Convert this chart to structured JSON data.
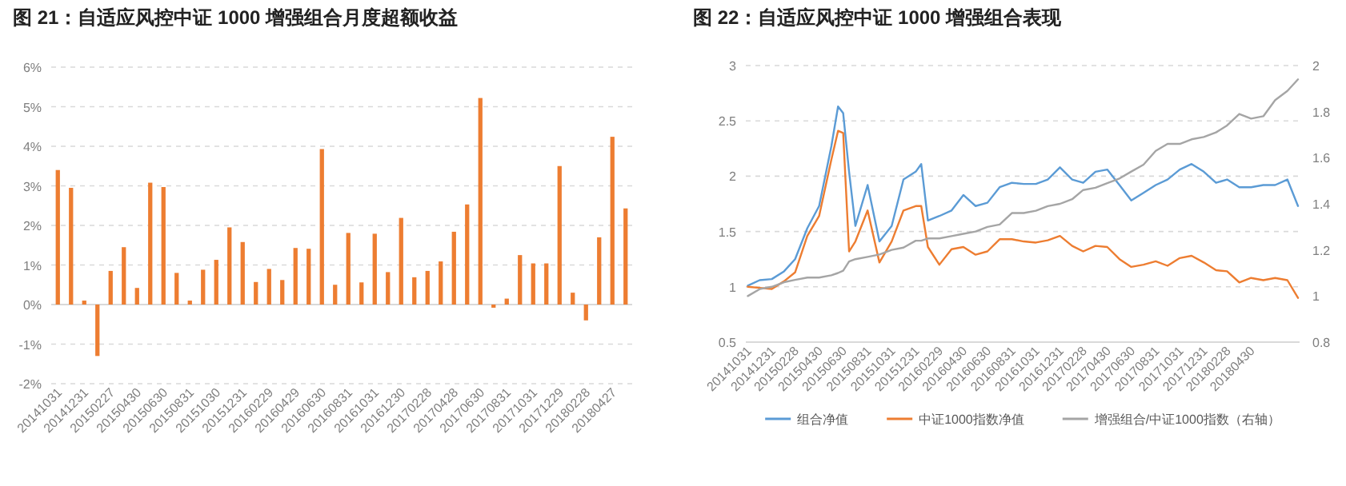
{
  "chart_data": [
    {
      "type": "bar",
      "title": "图 21：自适应风控中证 1000 增强组合月度超额收益",
      "categories": [
        "20141031",
        null,
        "20141231",
        null,
        "20150227",
        null,
        "20150430",
        null,
        "20150630",
        null,
        "20150831",
        null,
        "20151030",
        null,
        "20151231",
        null,
        "20160229",
        null,
        "20160429",
        null,
        "20160630",
        null,
        "20160831",
        null,
        "20161031",
        null,
        "20161230",
        null,
        "20170228",
        null,
        "20170428",
        null,
        "20170630",
        null,
        "20170831",
        null,
        "20171031",
        null,
        "20171229",
        null,
        "20180228",
        null,
        "20180427",
        null
      ],
      "values": [
        3.4,
        2.95,
        0.1,
        -1.3,
        0.85,
        1.45,
        0.42,
        3.08,
        2.97,
        0.8,
        0.1,
        0.88,
        1.13,
        1.95,
        1.58,
        0.57,
        0.9,
        0.62,
        1.43,
        1.41,
        3.93,
        0.5,
        1.81,
        0.56,
        1.79,
        0.82,
        2.19,
        0.69,
        0.85,
        1.09,
        1.84,
        2.53,
        5.22,
        -0.08,
        0.15,
        1.25,
        1.04,
        1.04,
        3.5,
        0.3,
        -0.4,
        1.7,
        4.24,
        2.43
      ],
      "color": "#ed7d31",
      "ylim": [
        -2,
        6
      ],
      "yticks": [
        {
          "value": -2,
          "label": "-2%"
        },
        {
          "value": -1,
          "label": "-1%"
        },
        {
          "value": 0,
          "label": "0%"
        },
        {
          "value": 1,
          "label": "1%"
        },
        {
          "value": 2,
          "label": "2%"
        },
        {
          "value": 3,
          "label": "3%"
        },
        {
          "value": 4,
          "label": "4%"
        },
        {
          "value": 5,
          "label": "5%"
        },
        {
          "value": 6,
          "label": "6%"
        }
      ],
      "grid": "y"
    },
    {
      "type": "line",
      "title": "图 22：自适应风控中证 1000 增强组合表现",
      "x": [
        "2014-11-01",
        "2014-12-01",
        "2015-01-01",
        "2015-02-01",
        "2015-03-01",
        "2015-04-01",
        "2015-05-01",
        "2015-06-01",
        "2015-06-18",
        "2015-07-01",
        "2015-07-16",
        "2015-08-01",
        "2015-09-01",
        "2015-10-01",
        "2015-11-01",
        "2015-12-01",
        "2016-01-01",
        "2016-01-15",
        "2016-02-01",
        "2016-03-01",
        "2016-04-01",
        "2016-05-01",
        "2016-06-01",
        "2016-07-01",
        "2016-08-01",
        "2016-09-01",
        "2016-10-01",
        "2016-11-01",
        "2016-12-01",
        "2017-01-01",
        "2017-02-01",
        "2017-03-01",
        "2017-04-01",
        "2017-05-01",
        "2017-06-01",
        "2017-07-01",
        "2017-08-01",
        "2017-09-01",
        "2017-10-01",
        "2017-11-01",
        "2017-12-01",
        "2018-01-01",
        "2018-02-01",
        "2018-03-01",
        "2018-04-01",
        "2018-05-01",
        "2018-06-01",
        "2018-07-01",
        "2018-08-01",
        "2018-08-28"
      ],
      "series": [
        {
          "name": "组合净值",
          "color": "#5b9bd5",
          "values": [
            1.01,
            1.06,
            1.07,
            1.14,
            1.25,
            1.53,
            1.73,
            2.27,
            2.63,
            2.57,
            2.04,
            1.55,
            1.92,
            1.41,
            1.55,
            1.97,
            2.04,
            2.11,
            1.6,
            1.64,
            1.69,
            1.83,
            1.73,
            1.76,
            1.9,
            1.94,
            1.93,
            1.93,
            1.97,
            2.08,
            1.97,
            1.94,
            2.04,
            2.06,
            1.92,
            1.78,
            1.85,
            1.92,
            1.97,
            2.06,
            2.11,
            2.04,
            1.94,
            1.97,
            1.9,
            1.9,
            1.92,
            1.92,
            1.97,
            1.73
          ]
        },
        {
          "name": "中证1000指数净值",
          "color": "#ed7d31",
          "values": [
            1.0,
            0.99,
            0.98,
            1.05,
            1.13,
            1.46,
            1.64,
            2.15,
            2.41,
            2.39,
            1.32,
            1.41,
            1.69,
            1.22,
            1.41,
            1.69,
            1.73,
            1.73,
            1.36,
            1.2,
            1.34,
            1.36,
            1.29,
            1.32,
            1.43,
            1.43,
            1.41,
            1.4,
            1.42,
            1.46,
            1.37,
            1.32,
            1.37,
            1.36,
            1.25,
            1.18,
            1.2,
            1.23,
            1.19,
            1.26,
            1.28,
            1.22,
            1.15,
            1.14,
            1.04,
            1.08,
            1.06,
            1.08,
            1.06,
            0.9
          ]
        },
        {
          "name": "增强组合/中证1000指数（右轴）",
          "color": "#a5a5a5",
          "axis": "y2",
          "values": [
            1.0,
            1.03,
            1.04,
            1.06,
            1.07,
            1.08,
            1.08,
            1.09,
            1.1,
            1.11,
            1.15,
            1.16,
            1.17,
            1.18,
            1.2,
            1.21,
            1.24,
            1.24,
            1.25,
            1.25,
            1.26,
            1.27,
            1.28,
            1.3,
            1.31,
            1.36,
            1.36,
            1.37,
            1.39,
            1.4,
            1.42,
            1.46,
            1.47,
            1.49,
            1.51,
            1.54,
            1.57,
            1.63,
            1.66,
            1.66,
            1.68,
            1.69,
            1.71,
            1.74,
            1.79,
            1.77,
            1.78,
            1.85,
            1.89,
            1.94
          ]
        }
      ],
      "xlim": [
        "2014-10-27",
        "2018-09-01"
      ],
      "xticks": [
        {
          "value": "2014-10-31",
          "label": "20141031"
        },
        {
          "value": "2014-12-31",
          "label": "20141231"
        },
        {
          "value": "2015-02-28",
          "label": "20150228"
        },
        {
          "value": "2015-04-30",
          "label": "20150430"
        },
        {
          "value": "2015-06-30",
          "label": "20150630"
        },
        {
          "value": "2015-08-31",
          "label": "20150831"
        },
        {
          "value": "2015-10-31",
          "label": "20151031"
        },
        {
          "value": "2015-12-31",
          "label": "20151231"
        },
        {
          "value": "2016-02-29",
          "label": "20160229"
        },
        {
          "value": "2016-04-30",
          "label": "20160430"
        },
        {
          "value": "2016-06-30",
          "label": "20160630"
        },
        {
          "value": "2016-08-31",
          "label": "20160831"
        },
        {
          "value": "2016-10-31",
          "label": "20161031"
        },
        {
          "value": "2016-12-31",
          "label": "20161231"
        },
        {
          "value": "2017-02-28",
          "label": "20170228"
        },
        {
          "value": "2017-04-30",
          "label": "20170430"
        },
        {
          "value": "2017-06-30",
          "label": "20170630"
        },
        {
          "value": "2017-08-31",
          "label": "20170831"
        },
        {
          "value": "2017-10-31",
          "label": "20171031"
        },
        {
          "value": "2017-12-31",
          "label": "20171231"
        },
        {
          "value": "2018-02-28",
          "label": "20180228"
        },
        {
          "value": "2018-04-30",
          "label": "20180430"
        }
      ],
      "ylim": [
        0.5,
        3
      ],
      "yticks": [
        0.5,
        1,
        1.5,
        2,
        2.5,
        3
      ],
      "y2lim": [
        0.8,
        2
      ],
      "y2ticks": [
        0.8,
        1,
        1.2,
        1.4,
        1.6,
        1.8,
        2
      ],
      "grid": "y",
      "legend": "bottom"
    }
  ]
}
